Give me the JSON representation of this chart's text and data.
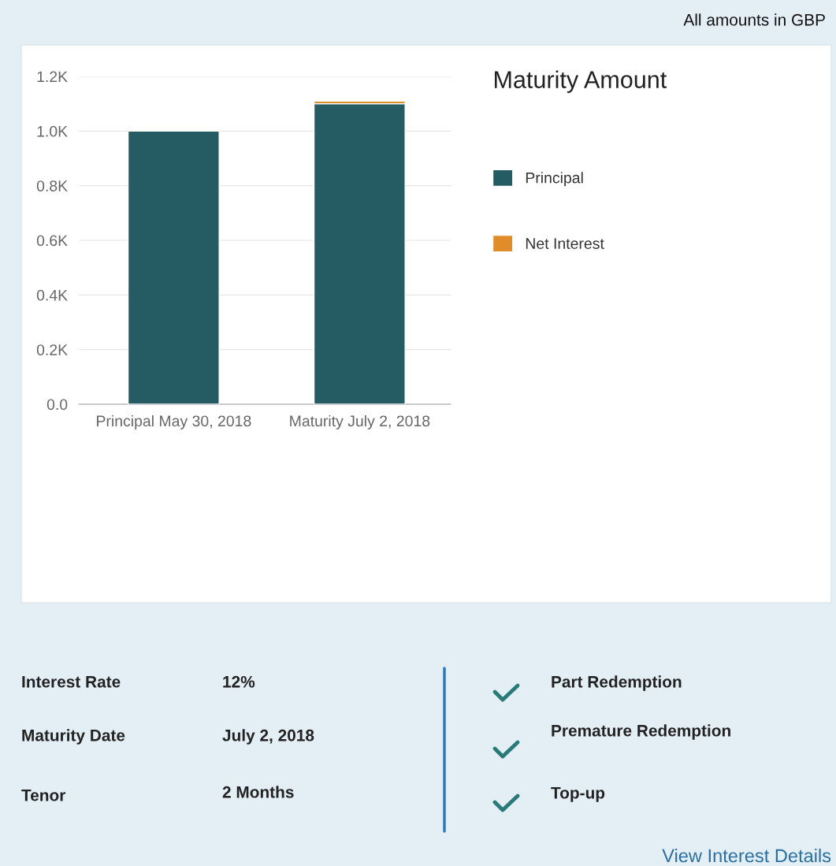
{
  "chart_data": [
    {
      "type": "bar",
      "legend_title": "Maturity Amount",
      "categories": [
        "Principal May 30, 2018",
        "Maturity July 2, 2018"
      ],
      "stacked": true,
      "series": [
        {
          "name": "Principal",
          "color": "#255b62",
          "values": [
            1000,
            1100
          ]
        },
        {
          "name": "Net Interest",
          "color": "#e08c2a",
          "values": [
            null,
            10
          ]
        }
      ],
      "ylim": [
        0,
        1200
      ],
      "yticks": [
        {
          "value": 0,
          "label": "0.0"
        },
        {
          "value": 200,
          "label": "0.2K"
        },
        {
          "value": 400,
          "label": "0.4K"
        },
        {
          "value": 600,
          "label": "0.6K"
        },
        {
          "value": 800,
          "label": "0.8K"
        },
        {
          "value": 1000,
          "label": "1.0K"
        },
        {
          "value": 1200,
          "label": "1.2K"
        }
      ],
      "grid": "y",
      "legend": "top right",
      "annotations": [
        "All amounts in GBP"
      ]
    },
    {
      "type": "other",
      "annotations": [
        "Interest Rate",
        "12%",
        "Maturity Date",
        "July 2, 2018",
        "Tenor",
        "2 Months",
        "Part Redemption",
        "Premature Redemption",
        "Top-up",
        "View Interest Details"
      ]
    }
  ]
}
